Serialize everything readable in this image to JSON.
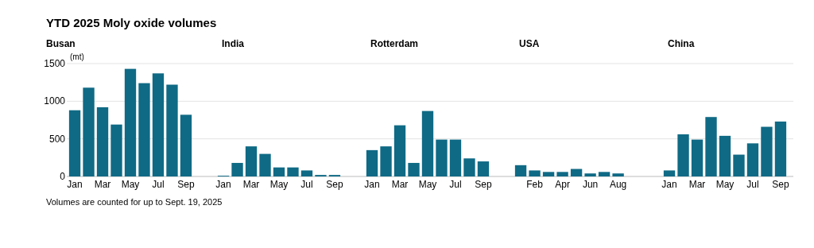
{
  "chart_data": [
    {
      "type": "bar",
      "title": "YTD 2025 Moly oxide volumes",
      "subtitle": "Busan",
      "ylabel": "(mt)",
      "categories": [
        "Jan",
        null,
        "Mar",
        null,
        "May",
        null,
        "Jul",
        null,
        "Sep"
      ],
      "values": [
        880,
        1180,
        920,
        690,
        1430,
        1240,
        1370,
        1220,
        820
      ],
      "color": "#0f6a85",
      "ylim": [
        0,
        1500
      ],
      "yticks": [
        0,
        500,
        1000,
        1500
      ],
      "grid": "y",
      "annotations": [
        "Volumes are counted for up to Sept. 19, 2025"
      ]
    },
    {
      "type": "bar",
      "subtitle": "India",
      "categories": [
        "Jan",
        null,
        "Mar",
        null,
        "May",
        null,
        "Jul",
        null,
        "Sep"
      ],
      "values": [
        10,
        180,
        400,
        300,
        120,
        120,
        80,
        20,
        20
      ],
      "color": "#0f6a85",
      "ylim": [
        0,
        1500
      ],
      "yticks": [
        0,
        500,
        1000,
        1500
      ],
      "grid": "y",
      "tick_labels": "x"
    },
    {
      "type": "bar",
      "subtitle": "Rotterdam",
      "categories": [
        "Jan",
        null,
        "Mar",
        null,
        "May",
        null,
        "Jul",
        null,
        "Sep"
      ],
      "values": [
        350,
        400,
        680,
        180,
        870,
        490,
        490,
        240,
        200
      ],
      "color": "#0f6a85",
      "ylim": [
        0,
        1500
      ],
      "yticks": [
        0,
        500,
        1000,
        1500
      ],
      "grid": "y",
      "tick_labels": "x"
    },
    {
      "type": "bar",
      "subtitle": "USA",
      "categories": [
        null,
        "Feb",
        null,
        "Apr",
        null,
        "Jun",
        null,
        "Aug"
      ],
      "values": [
        150,
        80,
        60,
        60,
        100,
        40,
        60,
        40
      ],
      "color": "#0f6a85",
      "ylim": [
        0,
        1500
      ],
      "yticks": [
        0,
        500,
        1000,
        1500
      ],
      "grid": "y",
      "tick_labels": "x"
    },
    {
      "type": "bar",
      "subtitle": "China",
      "categories": [
        "Jan",
        null,
        "Mar",
        null,
        "May",
        null,
        "Jul",
        null,
        "Sep"
      ],
      "values": [
        80,
        560,
        490,
        790,
        540,
        290,
        440,
        660,
        730
      ],
      "color": "#0f6a85",
      "ylim": [
        0,
        1500
      ],
      "yticks": [
        0,
        500,
        1000,
        1500
      ],
      "grid": "y",
      "tick_labels": "x"
    }
  ]
}
